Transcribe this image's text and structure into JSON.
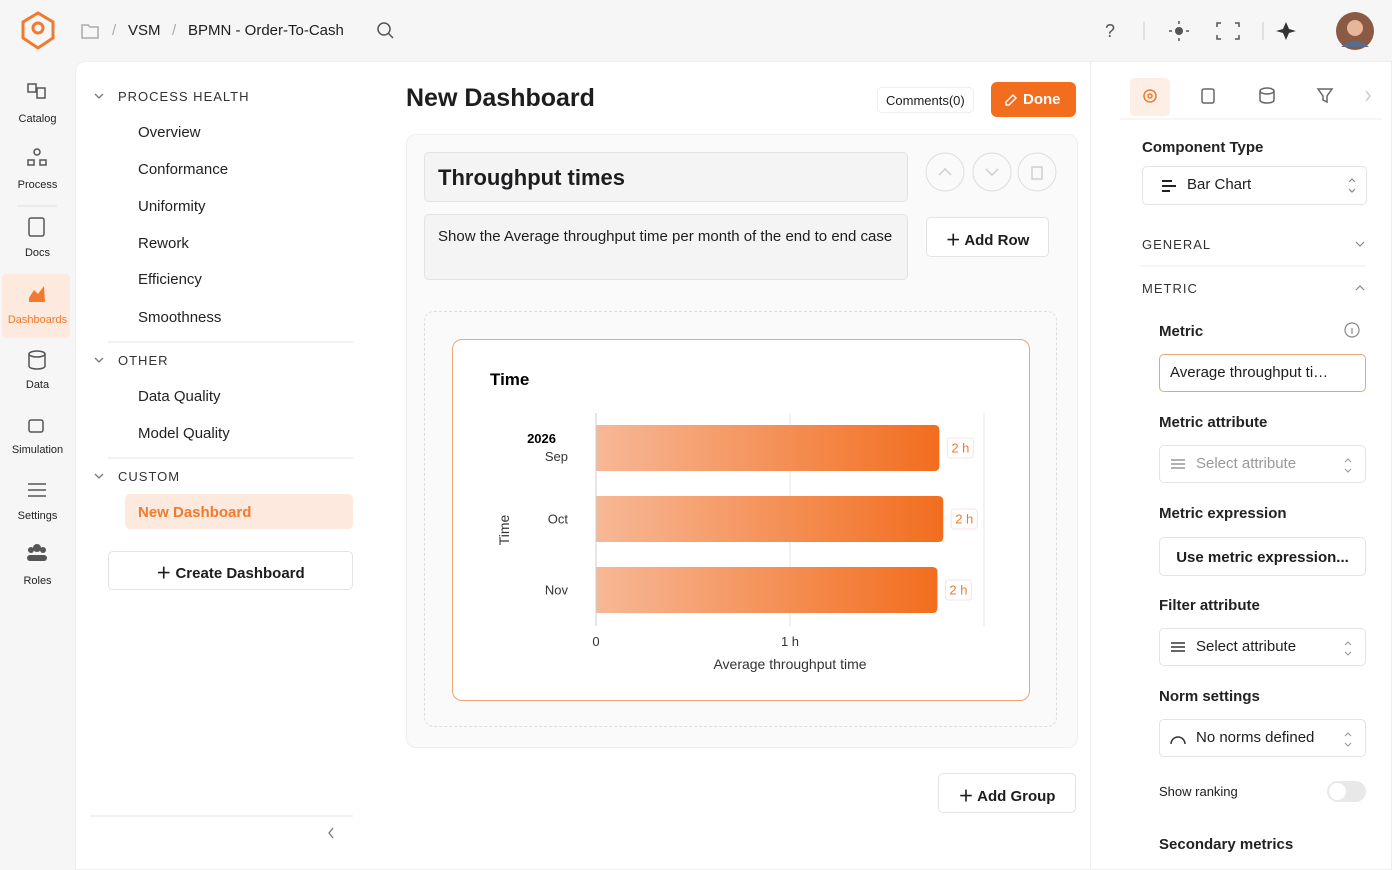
{
  "header": {
    "breadcrumb": [
      "VSM",
      "BPMN - Order-To-Cash"
    ]
  },
  "nav": [
    "Catalog",
    "Process",
    "Docs",
    "Dashboards",
    "Data",
    "Simulation",
    "Settings",
    "Roles"
  ],
  "sidebar": {
    "sections": [
      {
        "title": "PROCESS HEALTH",
        "items": [
          "Overview",
          "Conformance",
          "Uniformity",
          "Rework",
          "Efficiency",
          "Smoothness"
        ]
      },
      {
        "title": "OTHER",
        "items": [
          "Data Quality",
          "Model Quality"
        ]
      },
      {
        "title": "CUSTOM",
        "items": [
          "New Dashboard"
        ]
      }
    ],
    "create_button": "Create Dashboard"
  },
  "main": {
    "title": "New Dashboard",
    "comments": "Comments(0)",
    "done": "Done",
    "widget_title": "Throughput times",
    "widget_description": "Show the Average throughput time per month of the end to end case",
    "add_row": "Add Row",
    "add_group": "Add Group"
  },
  "chart_data": {
    "type": "hbar",
    "title": "Time",
    "y_label": "Time",
    "x_label": "Average throughput time",
    "category_group": "2026",
    "categories": [
      "Sep",
      "Oct",
      "Nov"
    ],
    "values": [
      1.77,
      1.79,
      1.76
    ],
    "value_labels": [
      "2 h",
      "2 h",
      "2 h"
    ],
    "xlim": [
      0,
      2
    ],
    "xticks": [
      0,
      {
        "value": 1,
        "label": "1 h"
      }
    ],
    "grid": true,
    "color": [
      "#f7b896",
      "#f26d1e"
    ]
  },
  "panel": {
    "component_type_label": "Component Type",
    "component_type": "Bar Chart",
    "general": "GENERAL",
    "metric_section": "METRIC",
    "metric_label": "Metric",
    "metric_value": "Average throughput ti…",
    "metric_attribute_label": "Metric attribute",
    "metric_attribute_value": "Select attribute",
    "metric_expression_label": "Metric expression",
    "metric_expression_button": "Use metric expression...",
    "filter_attribute_label": "Filter attribute",
    "filter_attribute_value": "Select attribute",
    "norm_label": "Norm settings",
    "norm_value": "No norms defined",
    "ranking_label": "Show ranking",
    "secondary_label": "Secondary metrics"
  }
}
